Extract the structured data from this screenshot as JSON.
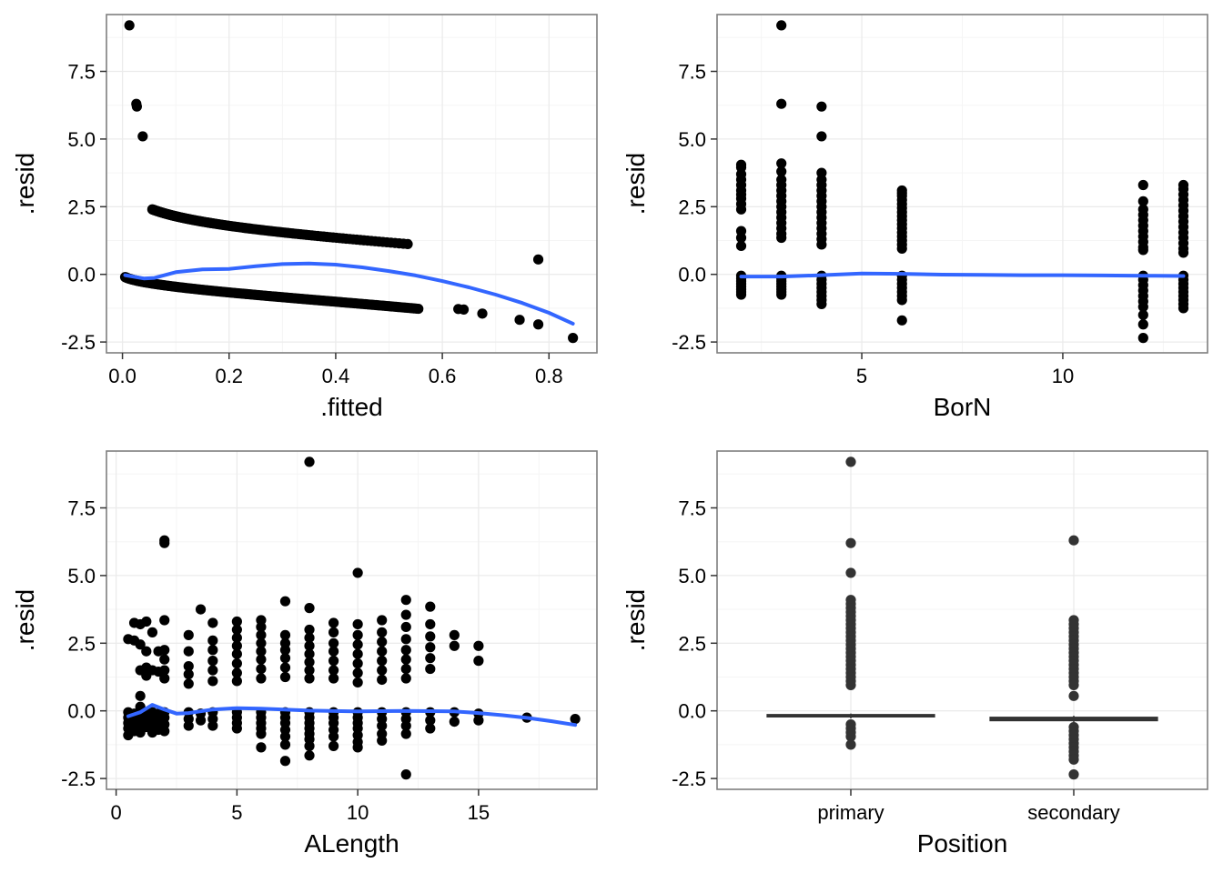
{
  "colors": {
    "points": "#000000",
    "points_box": "#333333",
    "smooth": "#3366FF",
    "grid_major": "#EBEBEB",
    "grid_minor": "#F5F5F5",
    "panel_border": "#7F7F7F",
    "box": "#333333"
  },
  "chart_data": [
    {
      "type": "scatter",
      "xlabel": ".fitted",
      "ylabel": ".resid",
      "xlim": [
        -0.03,
        0.89
      ],
      "ylim": [
        -2.9,
        9.6
      ],
      "xticks": [
        0.0,
        0.2,
        0.4,
        0.6,
        0.8
      ],
      "xtick_labels": [
        "0.0",
        "0.2",
        "0.4",
        "0.6",
        "0.8"
      ],
      "yticks": [
        -2.5,
        0.0,
        2.5,
        5.0,
        7.5
      ],
      "ytick_labels": [
        "-2.5",
        "0.0",
        "2.5",
        "5.0",
        "7.5"
      ],
      "grid": true,
      "outliers": [
        {
          "x": 0.013,
          "y": 9.2
        },
        {
          "x": 0.026,
          "y": 6.3
        },
        {
          "x": 0.027,
          "y": 6.2
        },
        {
          "x": 0.038,
          "y": 5.1
        },
        {
          "x": 0.78,
          "y": 0.55
        },
        {
          "x": 0.845,
          "y": -2.35
        },
        {
          "x": 0.63,
          "y": -1.28
        },
        {
          "x": 0.64,
          "y": -1.3
        },
        {
          "x": 0.675,
          "y": -1.45
        },
        {
          "x": 0.745,
          "y": -1.68
        },
        {
          "x": 0.78,
          "y": -1.85
        }
      ],
      "upper_branch": {
        "x_start": 0.056,
        "x_end": 0.535,
        "count": 150,
        "note_formula": "y = sqrt(-2*ln(x))"
      },
      "lower_branch": {
        "x_start": 0.005,
        "x_end": 0.555,
        "count": 170,
        "note_formula": "y = -sqrt(-2*ln(1-x))"
      },
      "smooth_line": {
        "x": [
          0.005,
          0.04,
          0.06,
          0.1,
          0.15,
          0.2,
          0.25,
          0.3,
          0.35,
          0.4,
          0.45,
          0.5,
          0.55,
          0.6,
          0.65,
          0.7,
          0.75,
          0.8,
          0.845
        ],
        "y": [
          -0.03,
          -0.15,
          -0.13,
          0.08,
          0.18,
          0.2,
          0.3,
          0.38,
          0.4,
          0.36,
          0.26,
          0.12,
          -0.04,
          -0.25,
          -0.48,
          -0.75,
          -1.06,
          -1.42,
          -1.82
        ]
      }
    },
    {
      "type": "scatter",
      "xlabel": "BorN",
      "ylabel": ".resid",
      "xlim": [
        1.4,
        13.6
      ],
      "ylim": [
        -2.9,
        9.6
      ],
      "xticks": [
        5,
        10
      ],
      "xtick_labels": [
        "5",
        "10"
      ],
      "yticks": [
        -2.5,
        0.0,
        2.5,
        5.0,
        7.5
      ],
      "ytick_labels": [
        "-2.5",
        "0.0",
        "2.5",
        "5.0",
        "7.5"
      ],
      "grid": true,
      "columns": [
        {
          "x": 2,
          "positive": [
            4.05,
            3.95,
            3.7,
            3.5,
            3.3,
            3.1,
            2.95,
            2.8,
            2.6,
            2.4,
            1.6,
            1.35,
            1.05
          ],
          "negative": [
            -0.05,
            -0.15,
            -0.25,
            -0.35,
            -0.45,
            -0.55,
            -0.65,
            -0.75
          ]
        },
        {
          "x": 3,
          "positive": [
            9.2,
            6.3,
            4.1,
            3.8,
            3.5,
            3.3,
            3.1,
            2.9,
            2.7,
            2.5,
            2.3,
            2.1,
            1.9,
            1.7,
            1.5,
            1.35
          ],
          "negative": [
            -0.05,
            -0.15,
            -0.25,
            -0.35,
            -0.45,
            -0.55,
            -0.65,
            -0.75
          ]
        },
        {
          "x": 4,
          "positive": [
            6.2,
            5.1,
            3.75,
            3.5,
            3.3,
            3.1,
            2.9,
            2.7,
            2.5,
            2.3,
            2.1,
            1.9,
            1.7,
            1.5,
            1.3,
            1.1
          ],
          "negative": [
            -0.05,
            -0.2,
            -0.35,
            -0.5,
            -0.65,
            -0.8,
            -0.95,
            -1.1
          ]
        },
        {
          "x": 6,
          "positive": [
            3.1,
            3.0,
            2.9,
            2.75,
            2.6,
            2.45,
            2.3,
            2.15,
            2.0,
            1.85,
            1.7,
            1.55,
            1.4,
            1.25,
            1.1,
            0.95
          ],
          "negative": [
            -0.05,
            -0.2,
            -0.35,
            -0.5,
            -0.65,
            -0.8,
            -0.95,
            -1.7
          ]
        },
        {
          "x": 12,
          "positive": [
            3.3,
            2.7,
            2.4,
            2.2,
            2.0,
            1.8,
            1.6,
            1.4,
            1.2,
            1.0,
            0.9
          ],
          "negative": [
            -0.05,
            -0.2,
            -0.4,
            -0.6,
            -0.8,
            -1.0,
            -1.2,
            -1.5,
            -1.85,
            -2.35
          ]
        },
        {
          "x": 13,
          "positive": [
            3.3,
            3.15,
            2.95,
            2.75,
            2.55,
            2.35,
            2.15,
            1.95,
            1.75,
            1.55,
            1.35,
            1.15,
            0.95,
            0.8
          ],
          "negative": [
            -0.05,
            -0.2,
            -0.35,
            -0.5,
            -0.65,
            -0.8,
            -0.95,
            -1.1,
            -1.25
          ]
        }
      ],
      "smooth_line": {
        "x": [
          2,
          3,
          4,
          5,
          6,
          7,
          8,
          9,
          10,
          11,
          12,
          13
        ],
        "y": [
          -0.08,
          -0.08,
          -0.03,
          0.03,
          0.02,
          -0.01,
          -0.02,
          -0.03,
          -0.03,
          -0.04,
          -0.05,
          -0.06
        ]
      }
    },
    {
      "type": "scatter",
      "xlabel": "ALength",
      "ylabel": ".resid",
      "xlim": [
        -0.4,
        19.9
      ],
      "ylim": [
        -2.9,
        9.6
      ],
      "xticks": [
        0,
        5,
        10,
        15
      ],
      "xtick_labels": [
        "0",
        "5",
        "10",
        "15"
      ],
      "yticks": [
        -2.5,
        0.0,
        2.5,
        5.0,
        7.5
      ],
      "ytick_labels": [
        "-2.5",
        "0.0",
        "2.5",
        "5.0",
        "7.5"
      ],
      "grid": true,
      "columns": [
        {
          "x": 0.5,
          "positive": [
            2.65
          ],
          "negative": [
            -0.05,
            -0.25,
            -0.45,
            -0.65,
            -0.9
          ]
        },
        {
          "x": 0.75,
          "positive": [
            3.25,
            2.6
          ],
          "negative": [
            -0.1,
            -0.3,
            -0.5,
            -0.75
          ]
        },
        {
          "x": 1.0,
          "positive": [
            3.2,
            2.45,
            1.5,
            0.55,
            0.15
          ],
          "negative": [
            -0.05,
            -0.25,
            -0.5,
            -0.8
          ]
        },
        {
          "x": 1.25,
          "positive": [
            3.3,
            2.2,
            1.6,
            1.3
          ],
          "negative": [
            -0.1,
            -0.3,
            -0.6
          ]
        },
        {
          "x": 1.5,
          "positive": [
            2.9,
            1.5
          ],
          "negative": [
            -0.05,
            -0.25,
            -0.55,
            -0.8
          ]
        },
        {
          "x": 1.75,
          "positive": [
            2.2,
            1.45
          ],
          "negative": [
            -0.1,
            -0.35,
            -0.7
          ]
        },
        {
          "x": 2.0,
          "positive": [
            6.3,
            6.2,
            3.35,
            2.25,
            1.9,
            1.5,
            1.2
          ],
          "negative": [
            -0.05,
            -0.25,
            -0.5,
            -0.75
          ]
        },
        {
          "x": 3,
          "positive": [
            2.8,
            2.2,
            1.65,
            1.35,
            1.0
          ],
          "negative": [
            -0.05,
            -0.3,
            -0.55
          ]
        },
        {
          "x": 3.5,
          "positive": [
            3.75
          ],
          "negative": [
            -0.1,
            -0.35
          ]
        },
        {
          "x": 4,
          "positive": [
            3.25,
            2.6,
            2.25,
            1.85,
            1.5,
            1.1
          ],
          "negative": [
            -0.05,
            -0.3,
            -0.55
          ]
        },
        {
          "x": 5,
          "positive": [
            3.3,
            3.0,
            2.7,
            2.4,
            2.1,
            1.75,
            1.4,
            1.1
          ],
          "negative": [
            -0.05,
            -0.25,
            -0.45,
            -0.65
          ]
        },
        {
          "x": 6,
          "positive": [
            3.35,
            3.1,
            2.8,
            2.5,
            2.2,
            1.9,
            1.55,
            1.2
          ],
          "negative": [
            -0.05,
            -0.25,
            -0.45,
            -0.65,
            -0.85,
            -1.35
          ]
        },
        {
          "x": 7,
          "positive": [
            4.05,
            2.8,
            2.5,
            2.25,
            1.95,
            1.6,
            1.25
          ],
          "negative": [
            -0.05,
            -0.25,
            -0.45,
            -0.7,
            -0.95,
            -1.25,
            -1.85
          ]
        },
        {
          "x": 8,
          "positive": [
            9.2,
            3.8,
            3.0,
            2.7,
            2.4,
            2.1,
            1.8,
            1.5,
            1.2
          ],
          "negative": [
            -0.05,
            -0.25,
            -0.45,
            -0.65,
            -0.85,
            -1.05,
            -1.3,
            -1.65
          ]
        },
        {
          "x": 9,
          "positive": [
            3.25,
            2.9,
            2.5,
            2.2,
            1.85,
            1.5,
            1.2
          ],
          "negative": [
            -0.05,
            -0.25,
            -0.45,
            -0.7,
            -0.95,
            -1.3
          ]
        },
        {
          "x": 10,
          "positive": [
            5.1,
            3.2,
            2.8,
            2.45,
            2.1,
            1.75,
            1.4,
            1.05
          ],
          "negative": [
            -0.05,
            -0.25,
            -0.45,
            -0.65,
            -0.9,
            -1.15,
            -1.35
          ]
        },
        {
          "x": 11,
          "positive": [
            3.35,
            2.9,
            2.55,
            2.2,
            1.85,
            1.5,
            1.15
          ],
          "negative": [
            -0.05,
            -0.3,
            -0.55,
            -0.85,
            -1.1
          ]
        },
        {
          "x": 12,
          "positive": [
            4.1,
            3.55,
            3.1,
            2.65,
            2.25,
            1.9,
            1.55,
            1.2
          ],
          "negative": [
            -0.05,
            -0.3,
            -0.55,
            -0.85,
            -2.35
          ]
        },
        {
          "x": 13,
          "positive": [
            3.85,
            3.2,
            2.75,
            2.35,
            1.95,
            1.55
          ],
          "negative": [
            -0.05,
            -0.35,
            -0.65
          ]
        },
        {
          "x": 14,
          "positive": [
            2.8,
            2.4
          ],
          "negative": [
            -0.05,
            -0.4
          ]
        },
        {
          "x": 15,
          "positive": [
            2.4,
            1.85
          ],
          "negative": [
            -0.1,
            -0.35
          ]
        },
        {
          "x": 17,
          "positive": [],
          "negative": [
            -0.25
          ]
        },
        {
          "x": 19,
          "positive": [],
          "negative": [
            -0.3
          ]
        }
      ],
      "smooth_line": {
        "x": [
          0.5,
          1.0,
          1.5,
          2.0,
          2.5,
          3.0,
          4.0,
          5.0,
          6.0,
          8.0,
          10.0,
          12.0,
          14.0,
          15.0,
          16.0,
          17.0,
          18.0,
          19.0
        ],
        "y": [
          -0.2,
          -0.05,
          0.22,
          0.05,
          -0.1,
          -0.08,
          0.05,
          0.1,
          0.08,
          0.01,
          -0.02,
          0.0,
          -0.02,
          -0.08,
          -0.16,
          -0.26,
          -0.38,
          -0.52
        ]
      }
    },
    {
      "type": "box",
      "xlabel": "Position",
      "ylabel": ".resid",
      "categories": [
        "primary",
        "secondary"
      ],
      "ylim": [
        -2.9,
        9.6
      ],
      "yticks": [
        -2.5,
        0.0,
        2.5,
        5.0,
        7.5
      ],
      "ytick_labels": [
        "-2.5",
        "0.0",
        "2.5",
        "5.0",
        "7.5"
      ],
      "grid": true,
      "boxes": [
        {
          "category": "primary",
          "q1": -0.22,
          "median": -0.18,
          "q3": -0.14,
          "whisker_low": -0.28,
          "whisker_high": -0.1,
          "outliers": [
            9.2,
            6.2,
            5.1,
            4.1,
            3.95,
            3.8,
            3.65,
            3.5,
            3.35,
            3.2,
            3.05,
            2.9,
            2.75,
            2.6,
            2.45,
            2.3,
            2.15,
            2.0,
            1.85,
            1.7,
            1.55,
            1.4,
            1.25,
            1.1,
            0.95,
            -0.5,
            -0.65,
            -0.8,
            -0.95,
            -1.25
          ]
        },
        {
          "category": "secondary",
          "q1": -0.36,
          "median": -0.3,
          "q3": -0.24,
          "whisker_low": -0.42,
          "whisker_high": -0.18,
          "outliers": [
            6.3,
            3.35,
            3.2,
            3.05,
            2.9,
            2.75,
            2.6,
            2.45,
            2.3,
            2.15,
            2.0,
            1.85,
            1.7,
            1.55,
            1.4,
            1.25,
            1.1,
            0.95,
            0.55,
            -0.6,
            -0.75,
            -0.9,
            -1.05,
            -1.2,
            -1.35,
            -1.5,
            -1.65,
            -1.8,
            -2.35
          ]
        }
      ]
    }
  ]
}
